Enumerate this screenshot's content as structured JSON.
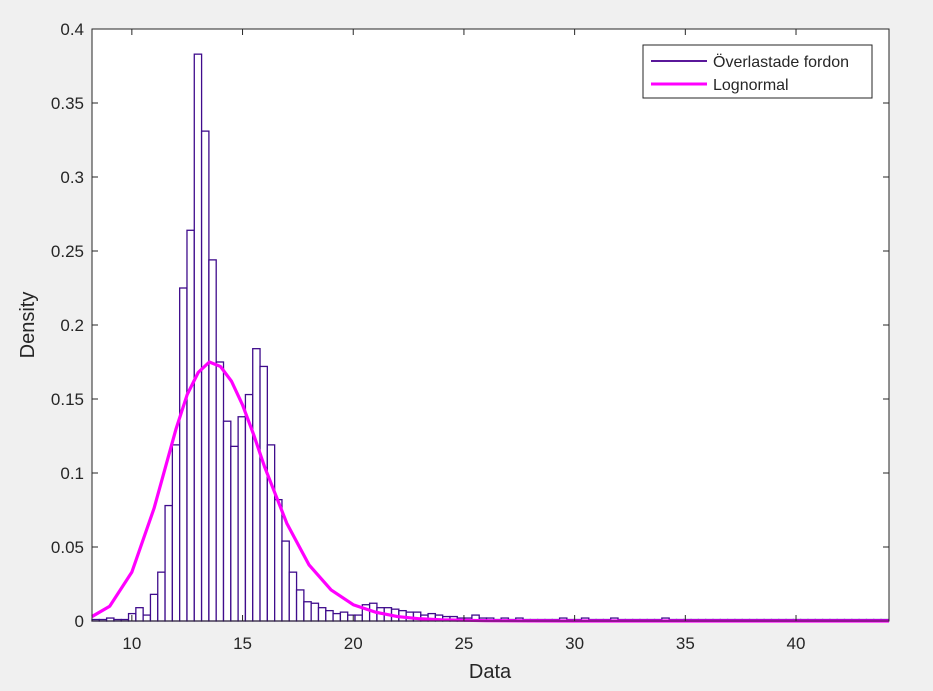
{
  "chart_data": {
    "type": "bar",
    "xlabel": "Data",
    "ylabel": "Density",
    "xlim": [
      8.2,
      44.2
    ],
    "ylim": [
      0,
      0.4
    ],
    "x_ticks": [
      10,
      15,
      20,
      25,
      30,
      35,
      40
    ],
    "y_ticks": [
      0,
      0.05,
      0.1,
      0.15,
      0.2,
      0.25,
      0.3,
      0.35,
      0.4
    ],
    "y_tick_labels": [
      "0",
      "0.05",
      "0.1",
      "0.15",
      "0.2",
      "0.25",
      "0.3",
      "0.35",
      "0.4"
    ],
    "grid": false,
    "legend_position": "top-right",
    "legend": [
      {
        "label": "Överlastade fordon",
        "color": "#5a189a",
        "style": "thin"
      },
      {
        "label": "Lognormal",
        "color": "#ff00ff",
        "style": "thick"
      }
    ],
    "histogram": {
      "name": "Överlastade fordon",
      "bin_start": 8.2,
      "bin_width": 0.33,
      "edge_color": "#3f0c8c",
      "values": [
        0.001,
        0.001,
        0.002,
        0.001,
        0.001,
        0.005,
        0.009,
        0.004,
        0.018,
        0.033,
        0.078,
        0.119,
        0.225,
        0.264,
        0.383,
        0.331,
        0.244,
        0.175,
        0.135,
        0.118,
        0.138,
        0.153,
        0.184,
        0.172,
        0.119,
        0.082,
        0.054,
        0.033,
        0.021,
        0.013,
        0.012,
        0.009,
        0.007,
        0.005,
        0.006,
        0.004,
        0.004,
        0.011,
        0.012,
        0.009,
        0.009,
        0.008,
        0.007,
        0.006,
        0.006,
        0.004,
        0.005,
        0.004,
        0.003,
        0.003,
        0.002,
        0.002,
        0.004,
        0.002,
        0.002,
        0.001,
        0.002,
        0.001,
        0.002,
        0.001,
        0.001,
        0.001,
        0.001,
        0.001,
        0.002,
        0.001,
        0.001,
        0.002,
        0.001,
        0.001,
        0.001,
        0.002,
        0.001,
        0.001,
        0.001,
        0.001,
        0.001,
        0.001,
        0.002,
        0.001,
        0.001,
        0.001,
        0.001,
        0.001,
        0.001,
        0.001,
        0.001,
        0.001,
        0.001,
        0.001,
        0.001,
        0.001,
        0.001,
        0.001,
        0.001,
        0.001,
        0.001,
        0.001,
        0.001,
        0.001,
        0.001,
        0.001,
        0.001,
        0.001,
        0.001,
        0.001,
        0.001,
        0.001,
        0.001
      ]
    },
    "fit": {
      "name": "Lognormal",
      "type": "line",
      "color": "#ff00ff",
      "x": [
        8.2,
        9.0,
        10.0,
        11.0,
        12.0,
        12.5,
        13.0,
        13.5,
        14.0,
        14.5,
        15.0,
        15.5,
        16.0,
        17.0,
        18.0,
        19.0,
        20.0,
        21.0,
        22.0,
        23.0,
        24.0,
        26.0,
        28.0,
        30.0,
        35.0,
        40.0,
        44.2
      ],
      "y": [
        0.003,
        0.01,
        0.033,
        0.076,
        0.13,
        0.153,
        0.168,
        0.175,
        0.172,
        0.162,
        0.146,
        0.126,
        0.104,
        0.066,
        0.038,
        0.021,
        0.011,
        0.006,
        0.003,
        0.0015,
        0.0008,
        0.0002,
        0.0001,
        0.0,
        0.0,
        0.0,
        0.0
      ]
    }
  }
}
